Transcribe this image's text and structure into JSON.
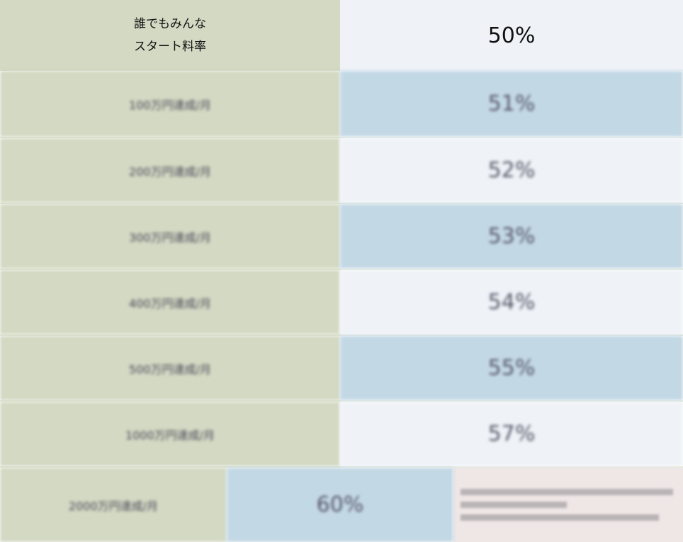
{
  "header": {
    "label_line1": "誰でもみんな",
    "label_line2": "スタート料率",
    "value": "50%"
  },
  "rows": [
    {
      "label": "100万円達成/月",
      "value": "51%"
    },
    {
      "label": "200万円達成/月",
      "value": "52%"
    },
    {
      "label": "300万円達成/月",
      "value": "53%"
    },
    {
      "label": "400万円達成/月",
      "value": "54%"
    },
    {
      "label": "500万円達成/月",
      "value": "55%"
    },
    {
      "label": "1000万円達成/月",
      "value": "57%"
    }
  ],
  "last_row": {
    "label": "2000万円達成/月",
    "value": "60%"
  },
  "colors": {
    "label_bg": "#d3d9c3",
    "light_bg": "#eff3f7",
    "blue_bg": "#c3d8e5",
    "note_bg": "#efe6e6"
  }
}
